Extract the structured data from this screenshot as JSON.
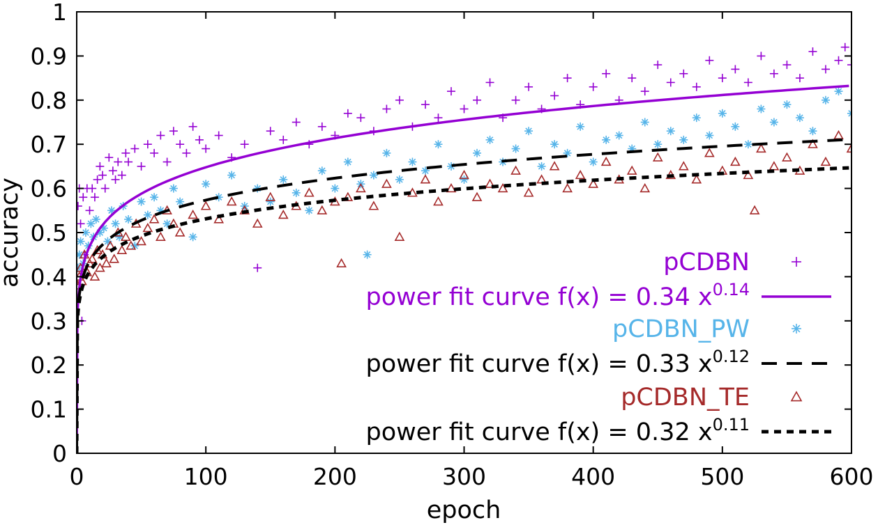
{
  "chart_data": {
    "type": "scatter",
    "title": "",
    "xlabel": "epoch",
    "ylabel": "accuracy",
    "xlim": [
      0,
      600
    ],
    "ylim": [
      0,
      1
    ],
    "x_ticks": [
      "0",
      "100",
      "200",
      "300",
      "400",
      "500",
      "600"
    ],
    "y_ticks": [
      "0",
      "0.1",
      "0.2",
      "0.3",
      "0.4",
      "0.5",
      "0.6",
      "0.7",
      "0.8",
      "0.9",
      "1"
    ],
    "grid": false,
    "legend_position": "bottom-right",
    "series": [
      {
        "name": "pCDBN",
        "kind": "points",
        "marker": "plus",
        "color": "#9400d3",
        "x": [
          1,
          2,
          3,
          4,
          5,
          6,
          8,
          10,
          12,
          14,
          16,
          18,
          20,
          22,
          25,
          28,
          30,
          32,
          35,
          38,
          40,
          45,
          50,
          55,
          60,
          65,
          70,
          75,
          80,
          85,
          90,
          95,
          100,
          110,
          120,
          130,
          140,
          150,
          160,
          170,
          180,
          190,
          200,
          210,
          220,
          230,
          240,
          250,
          260,
          270,
          280,
          290,
          300,
          310,
          320,
          330,
          340,
          350,
          360,
          370,
          380,
          390,
          400,
          410,
          420,
          430,
          440,
          450,
          460,
          470,
          480,
          490,
          500,
          510,
          520,
          530,
          540,
          550,
          560,
          570,
          580,
          590,
          595,
          600
        ],
        "y": [
          0.56,
          0.6,
          0.52,
          0.3,
          0.58,
          0.45,
          0.6,
          0.55,
          0.6,
          0.58,
          0.62,
          0.65,
          0.63,
          0.6,
          0.67,
          0.64,
          0.62,
          0.66,
          0.63,
          0.68,
          0.66,
          0.69,
          0.65,
          0.7,
          0.68,
          0.72,
          0.66,
          0.73,
          0.7,
          0.68,
          0.74,
          0.71,
          0.69,
          0.72,
          0.67,
          0.7,
          0.42,
          0.73,
          0.71,
          0.75,
          0.7,
          0.74,
          0.72,
          0.77,
          0.76,
          0.73,
          0.78,
          0.8,
          0.74,
          0.79,
          0.76,
          0.82,
          0.78,
          0.8,
          0.84,
          0.76,
          0.8,
          0.83,
          0.78,
          0.81,
          0.85,
          0.79,
          0.83,
          0.86,
          0.8,
          0.85,
          0.82,
          0.88,
          0.84,
          0.86,
          0.83,
          0.89,
          0.85,
          0.87,
          0.84,
          0.9,
          0.86,
          0.88,
          0.85,
          0.91,
          0.87,
          0.89,
          0.92,
          0.88
        ]
      },
      {
        "name": "power fit curve f(x) = 0.34 x^0.14",
        "kind": "fit",
        "a": 0.34,
        "b": 0.14,
        "dash": "solid",
        "color": "#9400d3"
      },
      {
        "name": "pCDBN_PW",
        "kind": "points",
        "marker": "star",
        "color": "#56b4e9",
        "x": [
          1,
          2,
          3,
          5,
          7,
          9,
          11,
          13,
          15,
          18,
          21,
          24,
          27,
          30,
          33,
          36,
          40,
          45,
          50,
          55,
          60,
          65,
          70,
          75,
          80,
          90,
          100,
          110,
          120,
          130,
          140,
          150,
          160,
          170,
          180,
          190,
          200,
          210,
          220,
          225,
          230,
          240,
          250,
          260,
          270,
          280,
          290,
          300,
          310,
          320,
          330,
          340,
          350,
          360,
          370,
          380,
          390,
          400,
          410,
          420,
          430,
          440,
          450,
          460,
          470,
          480,
          490,
          500,
          510,
          520,
          530,
          540,
          550,
          560,
          570,
          580,
          590,
          600
        ],
        "y": [
          0.42,
          0.45,
          0.48,
          0.43,
          0.5,
          0.47,
          0.52,
          0.49,
          0.53,
          0.5,
          0.51,
          0.48,
          0.55,
          0.52,
          0.49,
          0.56,
          0.53,
          0.47,
          0.57,
          0.54,
          0.58,
          0.55,
          0.52,
          0.6,
          0.57,
          0.49,
          0.61,
          0.58,
          0.63,
          0.56,
          0.6,
          0.57,
          0.62,
          0.59,
          0.55,
          0.64,
          0.6,
          0.66,
          0.61,
          0.45,
          0.63,
          0.68,
          0.62,
          0.66,
          0.64,
          0.7,
          0.65,
          0.62,
          0.68,
          0.71,
          0.66,
          0.69,
          0.73,
          0.65,
          0.7,
          0.68,
          0.74,
          0.66,
          0.71,
          0.72,
          0.69,
          0.75,
          0.7,
          0.73,
          0.71,
          0.76,
          0.72,
          0.77,
          0.74,
          0.7,
          0.78,
          0.75,
          0.79,
          0.76,
          0.73,
          0.8,
          0.82,
          0.77
        ]
      },
      {
        "name": "power fit curve f(x) = 0.33 x^0.12",
        "kind": "fit",
        "a": 0.33,
        "b": 0.12,
        "dash": "long",
        "color": "#000000"
      },
      {
        "name": "pCDBN_TE",
        "kind": "points",
        "marker": "triangle",
        "color": "#a52a2a",
        "x": [
          1,
          2,
          3,
          4,
          6,
          8,
          10,
          12,
          14,
          16,
          18,
          20,
          23,
          26,
          29,
          32,
          35,
          38,
          42,
          46,
          50,
          55,
          60,
          65,
          70,
          75,
          80,
          90,
          100,
          110,
          120,
          130,
          140,
          150,
          160,
          170,
          180,
          190,
          200,
          205,
          210,
          220,
          230,
          240,
          250,
          260,
          270,
          280,
          290,
          300,
          310,
          320,
          330,
          340,
          350,
          360,
          370,
          380,
          390,
          400,
          410,
          420,
          430,
          440,
          450,
          460,
          470,
          480,
          490,
          500,
          510,
          520,
          525,
          530,
          540,
          550,
          560,
          570,
          580,
          590,
          600
        ],
        "y": [
          0.38,
          0.4,
          0.42,
          0.39,
          0.45,
          0.41,
          0.43,
          0.44,
          0.4,
          0.46,
          0.42,
          0.45,
          0.43,
          0.47,
          0.44,
          0.5,
          0.46,
          0.49,
          0.47,
          0.52,
          0.48,
          0.51,
          0.53,
          0.49,
          0.55,
          0.52,
          0.5,
          0.54,
          0.56,
          0.53,
          0.57,
          0.55,
          0.52,
          0.58,
          0.54,
          0.56,
          0.59,
          0.55,
          0.57,
          0.43,
          0.58,
          0.6,
          0.56,
          0.61,
          0.49,
          0.59,
          0.62,
          0.57,
          0.6,
          0.63,
          0.58,
          0.61,
          0.6,
          0.64,
          0.59,
          0.62,
          0.65,
          0.6,
          0.63,
          0.61,
          0.66,
          0.62,
          0.64,
          0.6,
          0.67,
          0.63,
          0.65,
          0.62,
          0.68,
          0.64,
          0.66,
          0.63,
          0.55,
          0.69,
          0.65,
          0.67,
          0.64,
          0.7,
          0.66,
          0.72,
          0.69
        ]
      },
      {
        "name": "power fit curve f(x) = 0.32 x^0.11",
        "kind": "fit",
        "a": 0.32,
        "b": 0.11,
        "dash": "short",
        "color": "#000000"
      }
    ]
  },
  "legend": [
    {
      "text": "pCDBN",
      "sup": "",
      "color": "#9400d3",
      "sample": "plus"
    },
    {
      "text": "power fit curve f(x) = 0.34 x",
      "sup": "0.14",
      "color": "#9400d3",
      "sample": "solid"
    },
    {
      "text": "pCDBN_PW",
      "sup": "",
      "color": "#56b4e9",
      "sample": "star"
    },
    {
      "text": "power fit curve f(x) = 0.33 x",
      "sup": "0.12",
      "color": "#000000",
      "sample": "long"
    },
    {
      "text": "pCDBN_TE",
      "sup": "",
      "color": "#a52a2a",
      "sample": "triangle"
    },
    {
      "text": "power fit curve f(x) = 0.32 x",
      "sup": "0.11",
      "color": "#000000",
      "sample": "short"
    }
  ]
}
